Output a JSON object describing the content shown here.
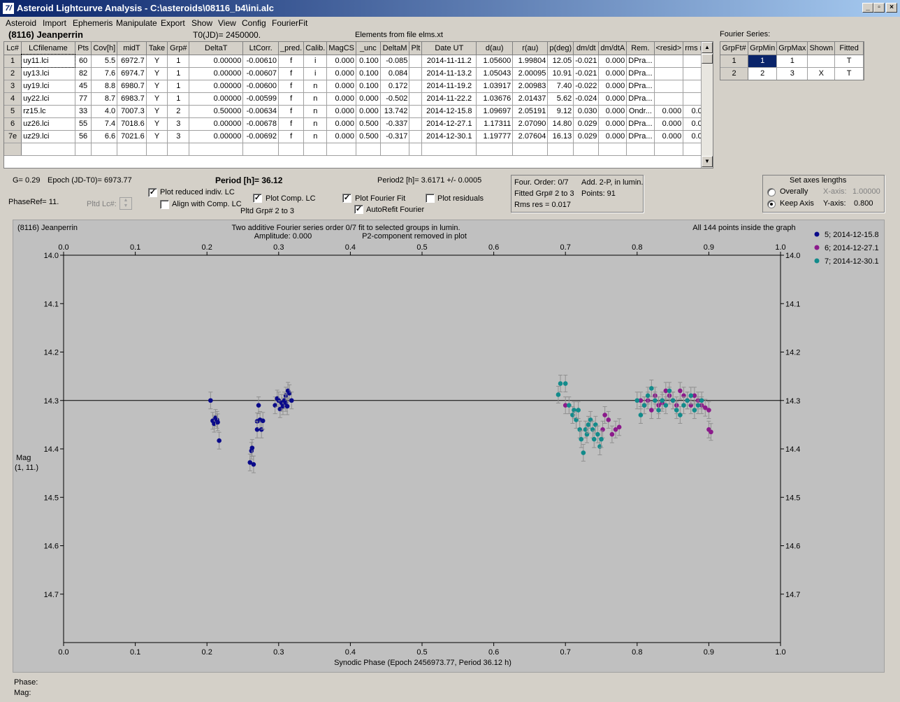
{
  "window": {
    "title": "Asteroid Lightcurve Analysis - C:\\asteroids\\08116_b4\\ini.alc",
    "app_icon_glyph": "7/",
    "buttons": {
      "minimize": "_",
      "restore": "▫",
      "close": "×"
    }
  },
  "menu": [
    "Asteroid",
    "Import",
    "Ephemeris",
    "Manipulate",
    "Export",
    "Show",
    "View",
    "Config",
    "FourierFit"
  ],
  "header": {
    "asteroid_name": "(8116) Jeanperrin",
    "t0": "T0(JD)= 2450000.",
    "elements_source": "Elements from file elms.xt"
  },
  "lc_table": {
    "columns": [
      "Lc#",
      "LCfilename",
      "Pts",
      "Cov[h]",
      "midT",
      "Take",
      "Grp#",
      "DeltaT",
      "LtCorr.",
      "_pred.",
      "Calib.",
      "MagCS",
      "_unc",
      "DeltaM",
      "Plt",
      "Date UT",
      "d(au)",
      "r(au)",
      "p(deg)",
      "dm/dt",
      "dm/dtA",
      "Rem.",
      "<resid>",
      "rms res"
    ],
    "rows": [
      [
        "1",
        "uy11.lci",
        "60",
        "5.5",
        "6972.7",
        "Y",
        "1",
        "0.00000",
        "-0.00610",
        "f",
        "i",
        "0.000",
        "0.100",
        "-0.085",
        "",
        "2014-11-11.2",
        "1.05600",
        "1.99804",
        "12.05",
        "-0.021",
        "0.000",
        "DPra...",
        "",
        ""
      ],
      [
        "2",
        "uy13.lci",
        "82",
        "7.6",
        "6974.7",
        "Y",
        "1",
        "0.00000",
        "-0.00607",
        "f",
        "i",
        "0.000",
        "0.100",
        "0.084",
        "",
        "2014-11-13.2",
        "1.05043",
        "2.00095",
        "10.91",
        "-0.021",
        "0.000",
        "DPra...",
        "",
        ""
      ],
      [
        "3",
        "uy19.lci",
        "45",
        "8.8",
        "6980.7",
        "Y",
        "1",
        "0.00000",
        "-0.00600",
        "f",
        "n",
        "0.000",
        "0.100",
        "0.172",
        "",
        "2014-11-19.2",
        "1.03917",
        "2.00983",
        "7.40",
        "-0.022",
        "0.000",
        "DPra...",
        "",
        ""
      ],
      [
        "4",
        "uy22.lci",
        "77",
        "8.7",
        "6983.7",
        "Y",
        "1",
        "0.00000",
        "-0.00599",
        "f",
        "n",
        "0.000",
        "0.000",
        "-0.502",
        "",
        "2014-11-22.2",
        "1.03676",
        "2.01437",
        "5.62",
        "-0.024",
        "0.000",
        "DPra...",
        "",
        ""
      ],
      [
        "5",
        "rz15.lc",
        "33",
        "4.0",
        "7007.3",
        "Y",
        "2",
        "0.50000",
        "-0.00634",
        "f",
        "n",
        "0.000",
        "0.000",
        "13.742",
        "",
        "2014-12-15.8",
        "1.09697",
        "2.05191",
        "9.12",
        "0.030",
        "0.000",
        "Ondr...",
        "0.000",
        "0.012"
      ],
      [
        "6",
        "uz26.lci",
        "55",
        "7.4",
        "7018.6",
        "Y",
        "3",
        "0.00000",
        "-0.00678",
        "f",
        "n",
        "0.000",
        "0.500",
        "-0.337",
        "",
        "2014-12-27.1",
        "1.17311",
        "2.07090",
        "14.80",
        "0.029",
        "0.000",
        "DPra...",
        "0.000",
        "0.013"
      ],
      [
        "7e",
        "uz29.lci",
        "56",
        "6.6",
        "7021.6",
        "Y",
        "3",
        "0.00000",
        "-0.00692",
        "f",
        "n",
        "0.000",
        "0.500",
        "-0.317",
        "",
        "2014-12-30.1",
        "1.19777",
        "2.07604",
        "16.13",
        "0.029",
        "0.000",
        "DPra...",
        "0.000",
        "0.018"
      ]
    ]
  },
  "fourier_table": {
    "title": "Fourier Series:",
    "columns": [
      "GrpFt#",
      "GrpMin",
      "GrpMax",
      "Shown",
      "Fitted"
    ],
    "rows": [
      [
        "1",
        "1",
        "1",
        "",
        "T"
      ],
      [
        "2",
        "2",
        "3",
        "X",
        "T"
      ]
    ]
  },
  "controls": {
    "g_value": "G= 0.29",
    "epoch": "Epoch (JD-T0)= 6973.77",
    "period": "Period [h]= 36.12",
    "period2": "Period2 [h]= 3.6171 +/- 0.0005",
    "phaseref": "PhaseRef= 11.",
    "pltd_lc_label": "Pltd Lc#:",
    "plot_reduced": "Plot reduced indiv. LC",
    "align_comp": "Align with Comp. LC",
    "plot_comp": "Plot Comp. LC",
    "pltd_grp": "Pltd Grp#  2  to  3",
    "plot_fourier": "Plot Fourier Fit",
    "autorefit": "AutoRefit Fourier",
    "plot_residuals": "Plot residuals",
    "checked": {
      "plot_reduced": true,
      "align_comp": false,
      "plot_comp": true,
      "plot_fourier": true,
      "autorefit": true,
      "plot_residuals": false
    }
  },
  "fit_info": {
    "order": "Four. Order:  0/7",
    "add": "Add. 2-P, in lumin.",
    "fitted": "Fitted Grp# 2 to 3",
    "points": "Points: 91",
    "rms": "Rms res     = 0.017"
  },
  "axes_box": {
    "title": "Set axes lengths",
    "overally": "Overally",
    "keep_axis": "Keep Axis",
    "x_label": "X-axis:",
    "x_value": "1.00000",
    "y_label": "Y-axis:",
    "y_value": "0.800",
    "selected": "keep_axis"
  },
  "plot": {
    "object": "(8116) Jeanperrin",
    "note1": "Two additive Fourier series order 0/7 fit to selected groups in lumin.",
    "note2": "Amplitude: 0.000",
    "note3": "P2-component removed in plot",
    "inside": "All 144 points inside the graph",
    "ylabel1": "Mag",
    "ylabel2": "(1, 11.)"
  },
  "footer": {
    "phase": "Phase:",
    "mag": "Mag:"
  },
  "chart_data": {
    "type": "scatter",
    "xlabel": "Synodic Phase (Epoch 2456973.77, Period 36.12 h)",
    "ylabel": "Mag (1, 11.)",
    "xlim": [
      0.0,
      1.0
    ],
    "ylim": [
      14.8,
      14.0
    ],
    "y_inverted": true,
    "x_ticks": [
      "0.0",
      "0.1",
      "0.2",
      "0.3",
      "0.4",
      "0.5",
      "0.6",
      "0.7",
      "0.8",
      "0.9",
      "1.0"
    ],
    "y_ticks": [
      "14.0",
      "14.1",
      "14.2",
      "14.3",
      "14.4",
      "14.5",
      "14.6",
      "14.7"
    ],
    "fit_line_y": 14.3,
    "grid": false,
    "legend_position": "top-right",
    "series": [
      {
        "name": "5; 2014-12-15.8",
        "color": "#0a0a8a",
        "points": [
          [
            0.205,
            14.3
          ],
          [
            0.208,
            14.342
          ],
          [
            0.21,
            14.348
          ],
          [
            0.212,
            14.336
          ],
          [
            0.214,
            14.34
          ],
          [
            0.215,
            14.345
          ],
          [
            0.217,
            14.383
          ],
          [
            0.26,
            14.428
          ],
          [
            0.262,
            14.404
          ],
          [
            0.263,
            14.398
          ],
          [
            0.265,
            14.432
          ],
          [
            0.27,
            14.343
          ],
          [
            0.27,
            14.36
          ],
          [
            0.272,
            14.31
          ],
          [
            0.274,
            14.34
          ],
          [
            0.276,
            14.36
          ],
          [
            0.278,
            14.342
          ],
          [
            0.295,
            14.31
          ],
          [
            0.298,
            14.296
          ],
          [
            0.3,
            14.3
          ],
          [
            0.302,
            14.318
          ],
          [
            0.304,
            14.305
          ],
          [
            0.306,
            14.312
          ],
          [
            0.308,
            14.3
          ],
          [
            0.31,
            14.29
          ],
          [
            0.31,
            14.305
          ],
          [
            0.312,
            14.312
          ],
          [
            0.313,
            14.28
          ],
          [
            0.315,
            14.285
          ],
          [
            0.318,
            14.3
          ]
        ]
      },
      {
        "name": "6; 2014-12-27.1",
        "color": "#8b1a8b",
        "points": [
          [
            0.7,
            14.31
          ],
          [
            0.752,
            14.36
          ],
          [
            0.755,
            14.33
          ],
          [
            0.76,
            14.34
          ],
          [
            0.765,
            14.37
          ],
          [
            0.77,
            14.36
          ],
          [
            0.775,
            14.355
          ],
          [
            0.805,
            14.3
          ],
          [
            0.81,
            14.31
          ],
          [
            0.815,
            14.3
          ],
          [
            0.82,
            14.32
          ],
          [
            0.825,
            14.29
          ],
          [
            0.83,
            14.31
          ],
          [
            0.835,
            14.305
          ],
          [
            0.84,
            14.28
          ],
          [
            0.845,
            14.29
          ],
          [
            0.85,
            14.3
          ],
          [
            0.855,
            14.31
          ],
          [
            0.86,
            14.28
          ],
          [
            0.865,
            14.29
          ],
          [
            0.87,
            14.3
          ],
          [
            0.875,
            14.31
          ],
          [
            0.88,
            14.29
          ],
          [
            0.885,
            14.3
          ],
          [
            0.89,
            14.31
          ],
          [
            0.895,
            14.315
          ],
          [
            0.9,
            14.32
          ],
          [
            0.9,
            14.36
          ],
          [
            0.903,
            14.365
          ]
        ]
      },
      {
        "name": "7; 2014-12-30.1",
        "color": "#128b8b",
        "points": [
          [
            0.69,
            14.288
          ],
          [
            0.693,
            14.265
          ],
          [
            0.7,
            14.265
          ],
          [
            0.705,
            14.31
          ],
          [
            0.71,
            14.33
          ],
          [
            0.712,
            14.32
          ],
          [
            0.715,
            14.34
          ],
          [
            0.718,
            14.32
          ],
          [
            0.72,
            14.36
          ],
          [
            0.722,
            14.38
          ],
          [
            0.725,
            14.408
          ],
          [
            0.728,
            14.36
          ],
          [
            0.73,
            14.37
          ],
          [
            0.732,
            14.35
          ],
          [
            0.735,
            14.34
          ],
          [
            0.738,
            14.36
          ],
          [
            0.74,
            14.38
          ],
          [
            0.742,
            14.35
          ],
          [
            0.745,
            14.37
          ],
          [
            0.748,
            14.395
          ],
          [
            0.75,
            14.38
          ],
          [
            0.8,
            14.3
          ],
          [
            0.805,
            14.33
          ],
          [
            0.81,
            14.31
          ],
          [
            0.815,
            14.29
          ],
          [
            0.82,
            14.275
          ],
          [
            0.825,
            14.3
          ],
          [
            0.83,
            14.32
          ],
          [
            0.835,
            14.3
          ],
          [
            0.84,
            14.31
          ],
          [
            0.845,
            14.28
          ],
          [
            0.85,
            14.3
          ],
          [
            0.855,
            14.32
          ],
          [
            0.86,
            14.33
          ],
          [
            0.865,
            14.31
          ],
          [
            0.87,
            14.3
          ],
          [
            0.875,
            14.29
          ],
          [
            0.88,
            14.32
          ],
          [
            0.885,
            14.31
          ],
          [
            0.89,
            14.3
          ]
        ]
      }
    ]
  }
}
